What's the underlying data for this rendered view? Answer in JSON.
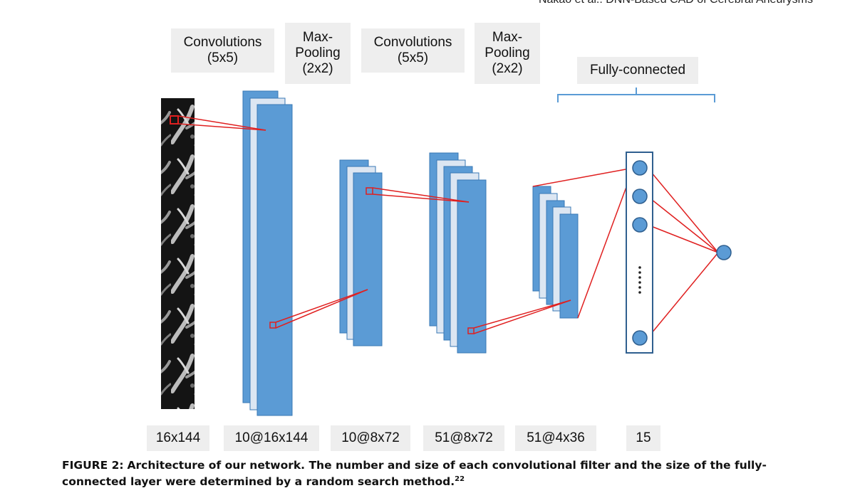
{
  "header": {
    "running_title": "Nakao et al.: DNN-Based CAD of Cerebral Aneurysms"
  },
  "diagram": {
    "stage_labels": [
      "Convolutions\n(5x5)",
      "Max-\nPooling\n(2x2)",
      "Convolutions\n(5x5)",
      "Max-\nPooling\n(2x2)",
      "Fully-connected"
    ],
    "dimensions": [
      "16x144",
      "10@16x144",
      "10@8x72",
      "51@8x72",
      "51@4x36",
      "15"
    ],
    "ellipsis": "......",
    "colors": {
      "feature_map": "#5b9bd5",
      "feature_map_back": "#dce6f2",
      "connection": "#e02020",
      "bracket": "#5b9bd5",
      "fc_border": "#2f5f8f",
      "label_bg": "#eeeeee"
    }
  },
  "caption": {
    "label": "FIGURE 2:",
    "text": "Architecture of our network. The number and size of each convolutional filter and the size of the fully-connected layer were determined by a random search method.",
    "ref": "22"
  }
}
